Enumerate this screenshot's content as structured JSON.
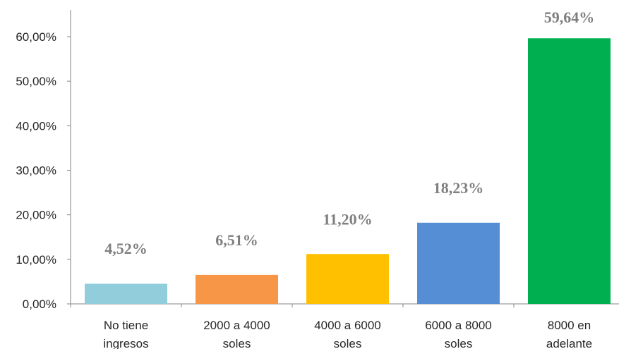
{
  "chart_data": {
    "type": "bar",
    "categories": [
      [
        "No tiene",
        "ingresos"
      ],
      [
        "2000 a 4000",
        "soles"
      ],
      [
        "4000 a 6000",
        "soles"
      ],
      [
        "6000 a 8000",
        "soles"
      ],
      [
        "8000 en",
        "adelante"
      ]
    ],
    "values": [
      4.52,
      6.51,
      11.2,
      18.23,
      59.64
    ],
    "data_labels": [
      "4,52%",
      "6,51%",
      "11,20%",
      "18,23%",
      "59,64%"
    ],
    "colors": [
      "#92cddc",
      "#f79646",
      "#ffc000",
      "#558ed5",
      "#00b050"
    ],
    "yticks": [
      "0,00%",
      "10,00%",
      "20,00%",
      "30,00%",
      "40,00%",
      "50,00%",
      "60,00%"
    ],
    "ylim": [
      0,
      60
    ],
    "grid": false,
    "legend": "none",
    "title": "",
    "xlabel": "",
    "ylabel": ""
  }
}
